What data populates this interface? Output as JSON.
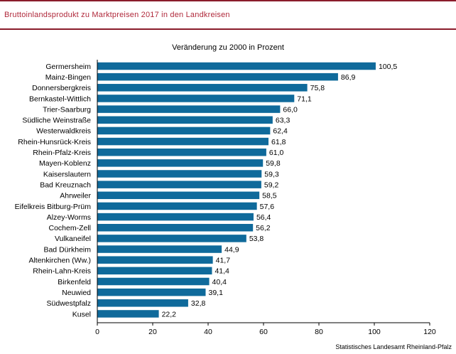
{
  "page": {
    "title": "Bruttoinlandsprodukt  zu Marktpreisen  2017  in den Landkreisen",
    "source": "Statistisches Landesamt Rheinland-Pfalz"
  },
  "colors": {
    "bar": "#0f6a9b",
    "frame": "#8a1c2b",
    "title": "#b0293b"
  },
  "chart_data": {
    "type": "bar",
    "orientation": "horizontal",
    "title": "Veränderung zu 2000 in Prozent",
    "categories": [
      "Germersheim",
      "Mainz-Bingen",
      "Donnersbergkreis",
      "Bernkastel-Wittlich",
      "Trier-Saarburg",
      "Südliche Weinstraße",
      "Westerwaldkreis",
      "Rhein-Hunsrück-Kreis",
      "Rhein-Pfalz-Kreis",
      "Mayen-Koblenz",
      "Kaiserslautern",
      "Bad Kreuznach",
      "Ahrweiler",
      "Eifelkreis Bitburg-Prüm",
      "Alzey-Worms",
      "Cochem-Zell",
      "Vulkaneifel",
      "Bad Dürkheim",
      "Altenkirchen (Ww.)",
      "Rhein-Lahn-Kreis",
      "Birkenfeld",
      "Neuwied",
      "Südwestpfalz",
      "Kusel"
    ],
    "values": [
      100.5,
      86.9,
      75.8,
      71.1,
      66.0,
      63.3,
      62.4,
      61.8,
      61.0,
      59.8,
      59.3,
      59.2,
      58.5,
      57.6,
      56.4,
      56.2,
      53.8,
      44.9,
      41.7,
      41.4,
      40.4,
      39.1,
      32.8,
      22.2
    ],
    "value_labels": [
      "100,5",
      "86,9",
      "75,8",
      "71,1",
      "66,0",
      "63,3",
      "62,4",
      "61,8",
      "61,0",
      "59,8",
      "59,3",
      "59,2",
      "58,5",
      "57,6",
      "56,4",
      "56,2",
      "53,8",
      "44,9",
      "41,7",
      "41,4",
      "40,4",
      "39,1",
      "32,8",
      "22,2"
    ],
    "xlim": [
      0,
      120
    ],
    "xticks": [
      0,
      20,
      40,
      60,
      80,
      100,
      120
    ],
    "xtick_labels": [
      "0",
      "20",
      "40",
      "60",
      "80",
      "100",
      "120"
    ],
    "grid": false,
    "legend": "none"
  }
}
